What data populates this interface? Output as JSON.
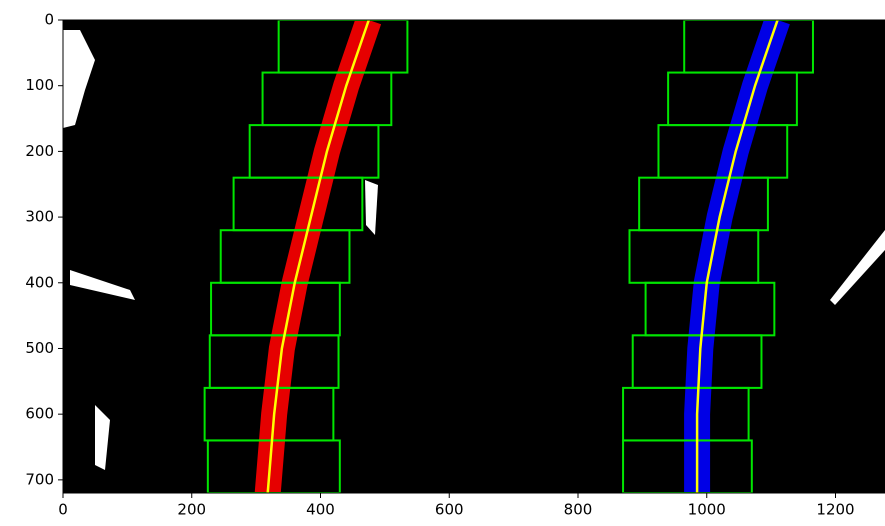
{
  "chart_data": {
    "type": "image",
    "xlim": [
      0,
      1280
    ],
    "ylim": [
      720,
      0
    ],
    "xticks": [
      0,
      200,
      400,
      600,
      800,
      1000,
      1200
    ],
    "yticks": [
      0,
      100,
      200,
      300,
      400,
      500,
      600,
      700
    ],
    "background": "#000000",
    "window_color": "#00e600",
    "fit_color": "#ffff00",
    "lanes": [
      {
        "color": "#ff0000",
        "windows": [
          [
            225,
            640,
            430,
            720
          ],
          [
            220,
            560,
            420,
            640
          ],
          [
            228,
            480,
            428,
            560
          ],
          [
            230,
            400,
            430,
            480
          ],
          [
            245,
            320,
            445,
            400
          ],
          [
            265,
            240,
            465,
            320
          ],
          [
            290,
            160,
            490,
            240
          ],
          [
            310,
            80,
            510,
            160
          ],
          [
            335,
            0,
            535,
            80
          ]
        ],
        "fit_x": [
          475,
          440,
          410,
          385,
          360,
          340,
          328,
          318
        ],
        "fit_y": [
          0,
          100,
          200,
          300,
          400,
          500,
          600,
          720
        ]
      },
      {
        "color": "#0000ff",
        "windows": [
          [
            870,
            640,
            1070,
            720
          ],
          [
            870,
            560,
            1065,
            640
          ],
          [
            885,
            480,
            1085,
            560
          ],
          [
            905,
            400,
            1105,
            480
          ],
          [
            880,
            320,
            1080,
            400
          ],
          [
            895,
            240,
            1095,
            320
          ],
          [
            925,
            160,
            1125,
            240
          ],
          [
            940,
            80,
            1140,
            160
          ],
          [
            965,
            0,
            1165,
            80
          ]
        ],
        "fit_x": [
          1110,
          1075,
          1045,
          1020,
          1000,
          990,
          985,
          985
        ],
        "fit_y": [
          0,
          100,
          200,
          300,
          400,
          500,
          600,
          720
        ]
      }
    ]
  }
}
